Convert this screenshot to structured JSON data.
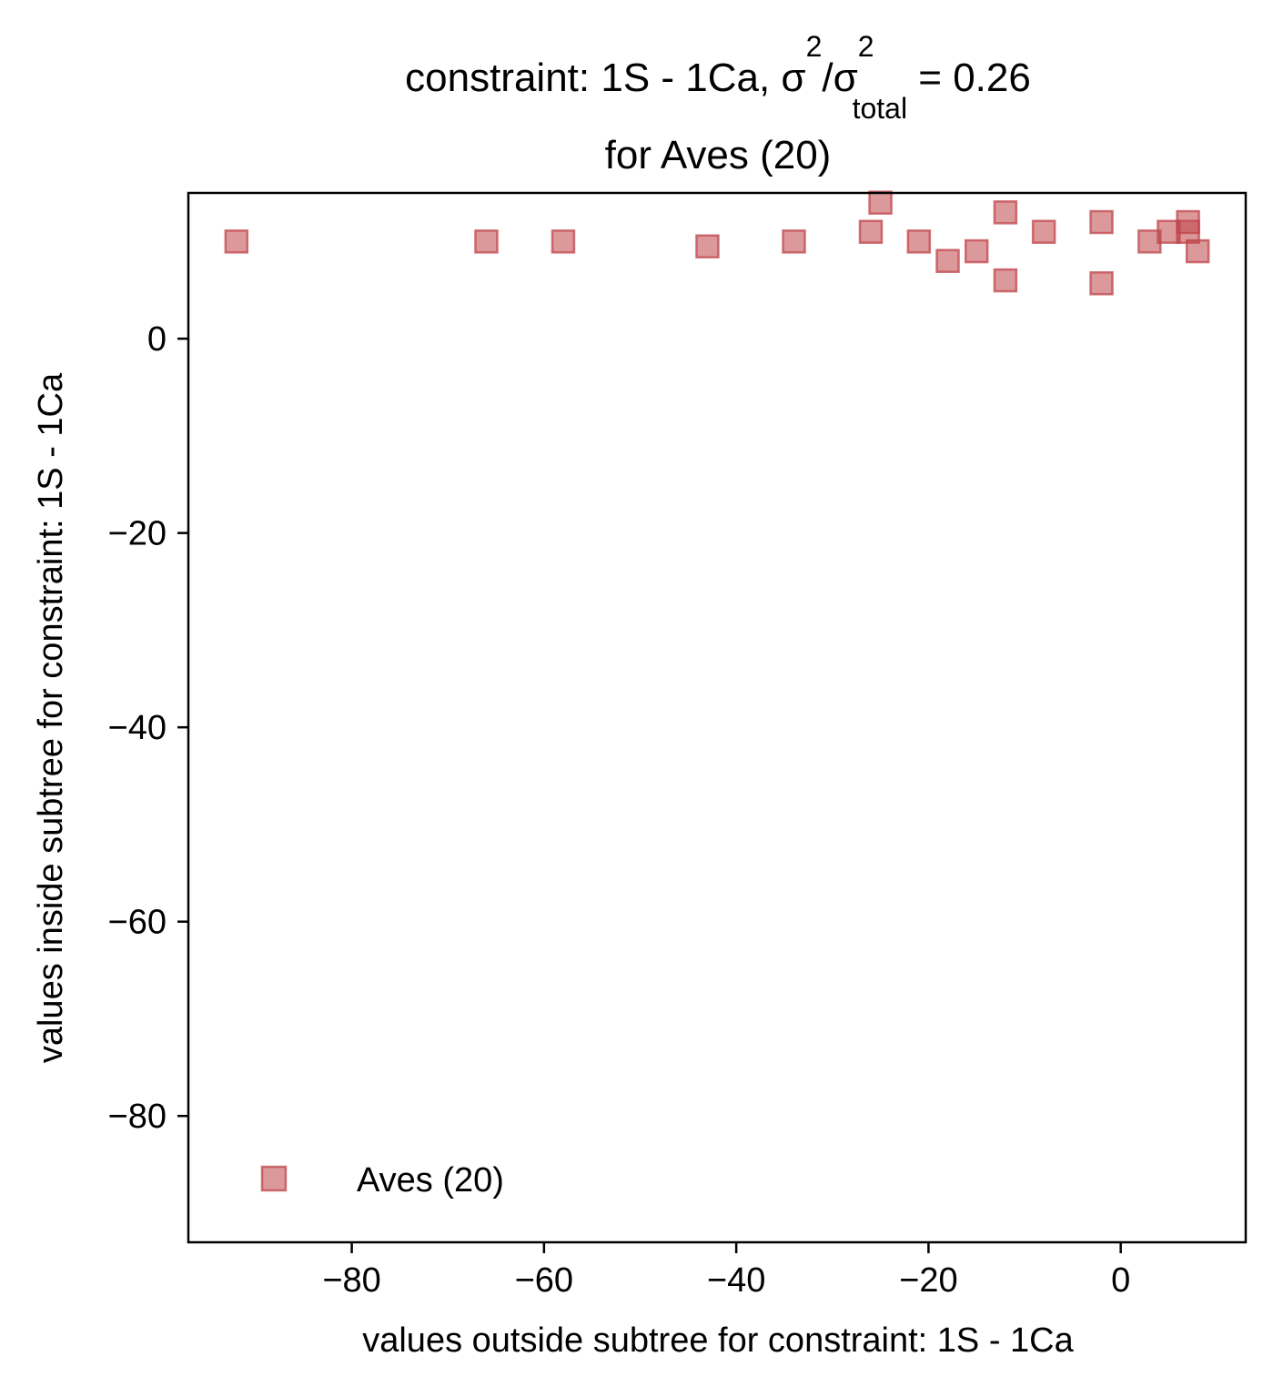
{
  "chart_data": {
    "type": "scatter",
    "title": {
      "line1_prefix": "constraint: 1S - 1Ca, σ",
      "sup1": "2",
      "mid": "/σ",
      "sup2": "2",
      "sub": "total",
      "line1_suffix": " =  0.26",
      "line2": "for Aves (20)"
    },
    "xlabel": "values outside subtree for constraint: 1S - 1Ca",
    "ylabel": "values inside subtree for constraint: 1S - 1Ca",
    "xlim": [
      -97,
      13
    ],
    "ylim": [
      -93,
      15
    ],
    "xticks": [
      -80,
      -60,
      -40,
      -20,
      0
    ],
    "yticks": [
      0,
      -20,
      -40,
      -60,
      -80
    ],
    "xtick_labels": [
      "−80",
      "−60",
      "−40",
      "−20",
      "0"
    ],
    "ytick_labels": [
      "0",
      "−20",
      "−40",
      "−60",
      "−80"
    ],
    "grid": false,
    "legend_position": "lower-left",
    "series": [
      {
        "name": "Aves (20)",
        "color": "#c0454b",
        "marker": "square",
        "points": [
          [
            -92,
            10
          ],
          [
            -66,
            10
          ],
          [
            -58,
            10
          ],
          [
            -43,
            9.5
          ],
          [
            -34,
            10
          ],
          [
            -26,
            11
          ],
          [
            -25,
            14
          ],
          [
            -21,
            10
          ],
          [
            -18,
            8
          ],
          [
            -15,
            9
          ],
          [
            -12,
            13
          ],
          [
            -12,
            6
          ],
          [
            -8,
            11
          ],
          [
            -2,
            12
          ],
          [
            -2,
            5.7
          ],
          [
            3,
            10
          ],
          [
            5,
            11
          ],
          [
            7,
            12
          ],
          [
            7,
            11
          ],
          [
            8,
            9
          ]
        ]
      }
    ]
  }
}
